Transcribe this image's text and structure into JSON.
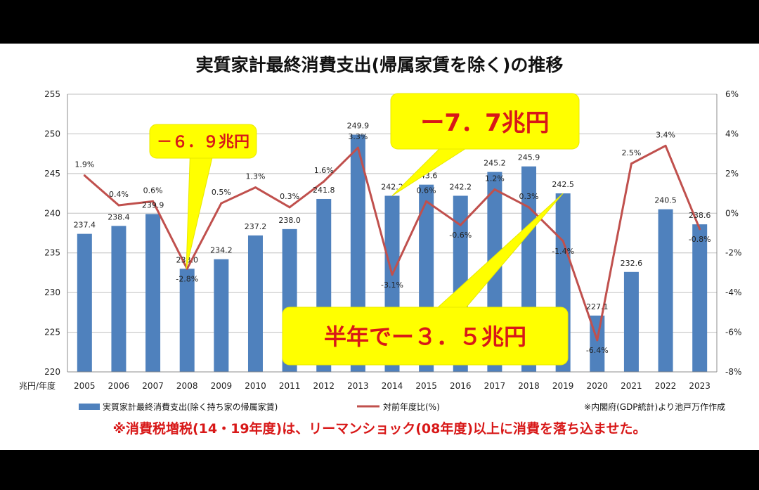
{
  "chart_data": {
    "type": "bar",
    "title": "実質家計最終消費支出(帰属家賃を除く)の推移",
    "categories": [
      "2005",
      "2006",
      "2007",
      "2008",
      "2009",
      "2010",
      "2011",
      "2012",
      "2013",
      "2014",
      "2015",
      "2016",
      "2017",
      "2018",
      "2019",
      "2020",
      "2021",
      "2022",
      "2023"
    ],
    "series": [
      {
        "name": "実質家計最終消費支出(除く持ち家の帰属家賃)",
        "type": "bar",
        "axis": "left",
        "color": "#4f81bd",
        "values": [
          237.4,
          238.4,
          239.9,
          233.0,
          234.2,
          237.2,
          238.0,
          241.8,
          249.9,
          242.2,
          243.6,
          242.2,
          245.2,
          245.9,
          242.5,
          227.1,
          232.6,
          240.5,
          238.6
        ],
        "labels": [
          "237.4",
          "238.4",
          "239.9",
          "233.0",
          "234.2",
          "237.2",
          "238.0",
          "241.8",
          "249.9",
          "242.2",
          "243.6",
          "242.2",
          "245.2",
          "245.9",
          "242.5",
          "227.1",
          "232.6",
          "240.5",
          "238.6"
        ]
      },
      {
        "name": "対前年度比(%)",
        "type": "line",
        "axis": "right",
        "color": "#c0504d",
        "values": [
          1.9,
          0.4,
          0.6,
          -2.8,
          0.5,
          1.3,
          0.3,
          1.6,
          3.3,
          -3.1,
          0.6,
          -0.6,
          1.2,
          0.3,
          -1.4,
          -6.4,
          2.5,
          3.4,
          -0.8
        ],
        "labels": [
          "1.9%",
          "0.4%",
          "0.6%",
          "-2.8%",
          "0.5%",
          "1.3%",
          "0.3%",
          "1.6%",
          "3.3%",
          "-3.1%",
          "0.6%",
          "-0.6%",
          "1.2%",
          "0.3%",
          "-1.4%",
          "-6.4%",
          "2.5%",
          "3.4%",
          "-0.8%"
        ]
      }
    ],
    "ylim_left": [
      220,
      255
    ],
    "yticks_left": [
      "220",
      "225",
      "230",
      "235",
      "240",
      "245",
      "250",
      "255"
    ],
    "ylim_right": [
      -8,
      6
    ],
    "yticks_right": [
      "-8%",
      "-6%",
      "-4%",
      "-2%",
      "0%",
      "2%",
      "4%",
      "6%"
    ],
    "xlabel": "兆円/年度",
    "grid": true,
    "legend_position": "bottom",
    "source_note": "※内閣府(GDP統計)より池戸万作作成",
    "footnote": "※消費税増税(14・19年度)は、リーマンショック(08年度)以上に消費を落ち込ませた。",
    "callouts": [
      {
        "text": "－６．９兆円",
        "year": "2008"
      },
      {
        "text": "ー7．7兆円",
        "year": "2014"
      },
      {
        "text": "半年でー３．５兆円",
        "year": "2019"
      }
    ]
  }
}
